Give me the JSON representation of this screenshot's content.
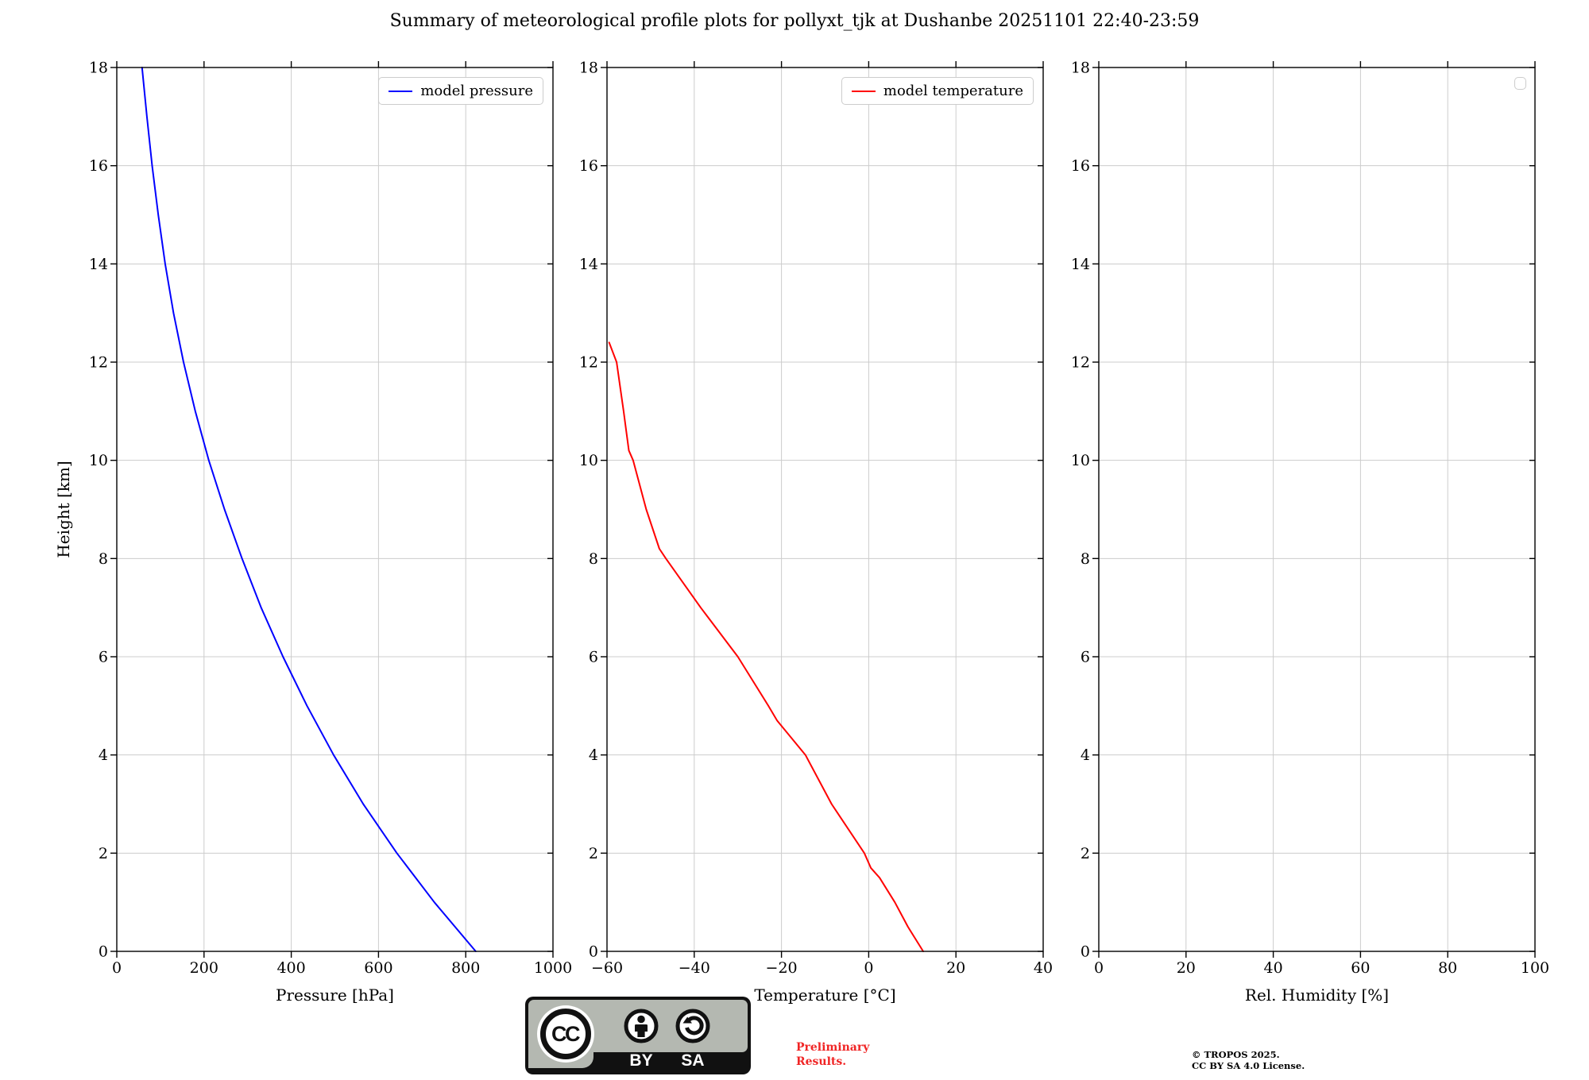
{
  "header": {
    "title": "Summary of meteorological profile plots for pollyxt_tjk at Dushanbe 20251101 22:40-23:59"
  },
  "colors": {
    "pressure_line": "#0000ff",
    "temperature_line": "#ff0000",
    "grid": "#cccccc",
    "spine": "#000000",
    "legend_border": "#cccccc",
    "badge_gray": "#b4b8b1",
    "badge_black": "#111111",
    "preliminary_red": "#f02525"
  },
  "chart_data": [
    {
      "id": "pressure",
      "type": "line",
      "xlabel": "Pressure [hPa]",
      "ylabel": "Height [km]",
      "xlim": [
        0,
        1000
      ],
      "ylim": [
        0,
        18
      ],
      "xticks": [
        0,
        200,
        400,
        600,
        800,
        1000
      ],
      "yticks": [
        0,
        2,
        4,
        6,
        8,
        10,
        12,
        14,
        16,
        18
      ],
      "grid": true,
      "legend": {
        "position": "upper right",
        "entries": [
          {
            "label": "model pressure",
            "color": "#0000ff"
          }
        ]
      },
      "series": [
        {
          "name": "model pressure",
          "color": "#0000ff",
          "points_xy_height": [
            [
              823,
              0
            ],
            [
              728,
              1
            ],
            [
              642,
              2
            ],
            [
              565,
              3
            ],
            [
              497,
              4
            ],
            [
              436,
              5
            ],
            [
              381,
              6
            ],
            [
              331,
              7
            ],
            [
              287,
              8
            ],
            [
              247,
              9
            ],
            [
              211,
              10
            ],
            [
              180,
              11
            ],
            [
              153,
              12
            ],
            [
              130,
              13
            ],
            [
              111,
              14
            ],
            [
              95,
              15
            ],
            [
              81,
              16
            ],
            [
              69,
              17
            ],
            [
              58,
              18
            ]
          ]
        }
      ]
    },
    {
      "id": "temperature",
      "type": "line",
      "xlabel": "Temperature [°C]",
      "ylabel": "",
      "xlim": [
        -60,
        40
      ],
      "ylim": [
        0,
        18
      ],
      "xticks": [
        -60,
        -40,
        -20,
        0,
        20,
        40
      ],
      "yticks": [
        0,
        2,
        4,
        6,
        8,
        10,
        12,
        14,
        16,
        18
      ],
      "grid": true,
      "legend": {
        "position": "upper right",
        "entries": [
          {
            "label": "model temperature",
            "color": "#ff0000"
          }
        ]
      },
      "series": [
        {
          "name": "model temperature",
          "color": "#ff0000",
          "points_xy_height": [
            [
              12.5,
              0
            ],
            [
              9,
              0.5
            ],
            [
              6,
              1
            ],
            [
              2.5,
              1.5
            ],
            [
              0.5,
              1.7
            ],
            [
              -1,
              2
            ],
            [
              -8.5,
              3
            ],
            [
              -14.5,
              4
            ],
            [
              -21,
              4.7
            ],
            [
              -23,
              5
            ],
            [
              -30,
              6
            ],
            [
              -38.5,
              7
            ],
            [
              -46.5,
              8
            ],
            [
              -48,
              8.2
            ],
            [
              -51,
              9
            ],
            [
              -54,
              10
            ],
            [
              -55,
              10.2
            ],
            [
              -55.6,
              10.6
            ],
            [
              -56.2,
              11
            ],
            [
              -57.8,
              12
            ],
            [
              -59.5,
              12.4
            ]
          ]
        }
      ]
    },
    {
      "id": "humidity",
      "type": "line",
      "xlabel": "Rel. Humidity [%]",
      "ylabel": "",
      "xlim": [
        0,
        100
      ],
      "ylim": [
        0,
        18
      ],
      "xticks": [
        0,
        20,
        40,
        60,
        80,
        100
      ],
      "yticks": [
        0,
        2,
        4,
        6,
        8,
        10,
        12,
        14,
        16,
        18
      ],
      "grid": true,
      "legend": {
        "position": "upper right",
        "entries": []
      },
      "series": []
    }
  ],
  "footer": {
    "badge": {
      "cc": "CC",
      "by": "BY",
      "sa": "SA"
    },
    "preliminary": "Preliminary\nResults.",
    "copyright": "© TROPOS 2025.\nCC BY SA 4.0 License."
  }
}
